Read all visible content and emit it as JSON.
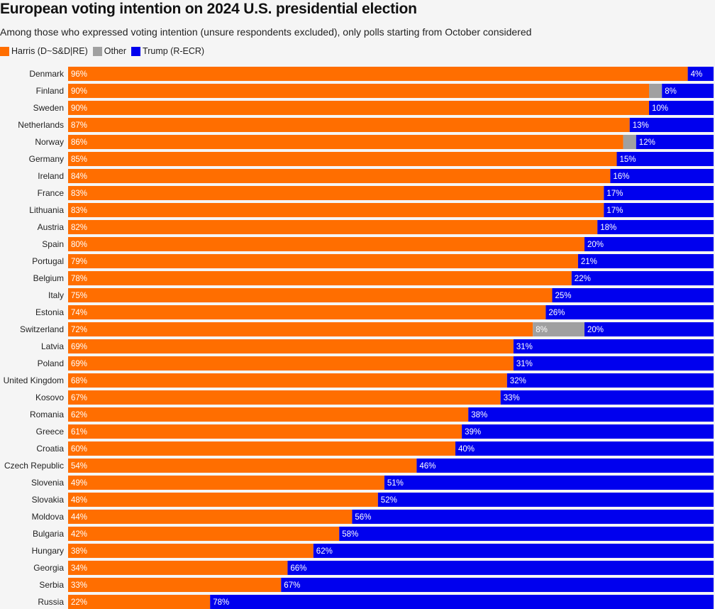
{
  "colors": {
    "harris": "#ff6e00",
    "other": "#a0a0a0",
    "trump": "#0000ee"
  },
  "chart_data": {
    "type": "bar",
    "orientation": "horizontal",
    "stacked": true,
    "title": "European voting intention on 2024 U.S. presidential election",
    "subtitle": "Among those who expressed voting intention (unsure respondents excluded), only polls starting from October considered",
    "legend_position": "top-left",
    "grid": false,
    "xlim": [
      0,
      100
    ],
    "categories": [
      "Denmark",
      "Finland",
      "Sweden",
      "Netherlands",
      "Norway",
      "Germany",
      "Ireland",
      "France",
      "Lithuania",
      "Austria",
      "Spain",
      "Portugal",
      "Belgium",
      "Italy",
      "Estonia",
      "Switzerland",
      "Latvia",
      "Poland",
      "United Kingdom",
      "Kosovo",
      "Romania",
      "Greece",
      "Croatia",
      "Czech Republic",
      "Slovenia",
      "Slovakia",
      "Moldova",
      "Bulgaria",
      "Hungary",
      "Georgia",
      "Serbia",
      "Russia"
    ],
    "series": [
      {
        "name": "Harris (D~S&D|RE)",
        "key": "harris",
        "values": [
          96,
          90,
          90,
          87,
          86,
          85,
          84,
          83,
          83,
          82,
          80,
          79,
          78,
          75,
          74,
          72,
          69,
          69,
          68,
          67,
          62,
          61,
          60,
          54,
          49,
          48,
          44,
          42,
          38,
          34,
          33,
          22
        ],
        "labels": [
          "96%",
          "90%",
          "90%",
          "87%",
          "86%",
          "85%",
          "84%",
          "83%",
          "83%",
          "82%",
          "80%",
          "79%",
          "78%",
          "75%",
          "74%",
          "72%",
          "69%",
          "69%",
          "68%",
          "67%",
          "62%",
          "61%",
          "60%",
          "54%",
          "49%",
          "48%",
          "44%",
          "42%",
          "38%",
          "34%",
          "33%",
          "22%"
        ]
      },
      {
        "name": "Other",
        "key": "other",
        "values": [
          0,
          2,
          0,
          0,
          2,
          0,
          0,
          0,
          0,
          0,
          0,
          0,
          0,
          0,
          0,
          8,
          0,
          0,
          0,
          0,
          0,
          0,
          0,
          0,
          0,
          0,
          0,
          0,
          0,
          0,
          0,
          0
        ],
        "labels": [
          "",
          "",
          "",
          "",
          "",
          "",
          "",
          "",
          "",
          "",
          "",
          "",
          "",
          "",
          "",
          "8%",
          "",
          "",
          "",
          "",
          "",
          "",
          "",
          "",
          "",
          "",
          "",
          "",
          "",
          "",
          "",
          ""
        ]
      },
      {
        "name": "Trump (R-ECR)",
        "key": "trump",
        "values": [
          4,
          8,
          10,
          13,
          12,
          15,
          16,
          17,
          17,
          18,
          20,
          21,
          22,
          25,
          26,
          20,
          31,
          31,
          32,
          33,
          38,
          39,
          40,
          46,
          51,
          52,
          56,
          58,
          62,
          66,
          67,
          78
        ],
        "labels": [
          "4%",
          "8%",
          "10%",
          "13%",
          "12%",
          "15%",
          "16%",
          "17%",
          "17%",
          "18%",
          "20%",
          "21%",
          "22%",
          "25%",
          "26%",
          "20%",
          "31%",
          "31%",
          "32%",
          "33%",
          "38%",
          "39%",
          "40%",
          "46%",
          "51%",
          "52%",
          "56%",
          "58%",
          "62%",
          "66%",
          "67%",
          "78%"
        ]
      }
    ]
  }
}
